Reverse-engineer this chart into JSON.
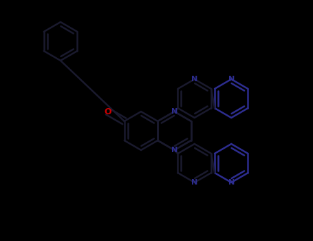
{
  "background_color": "#000000",
  "bond_color": "#1a1a2e",
  "nitrogen_color": "#2d2d8f",
  "oxygen_color": "#cc0000",
  "bond_lw": 1.8,
  "figsize": [
    4.55,
    3.5
  ],
  "dpi": 100,
  "xlim": [
    0,
    455
  ],
  "ylim": [
    0,
    350
  ]
}
